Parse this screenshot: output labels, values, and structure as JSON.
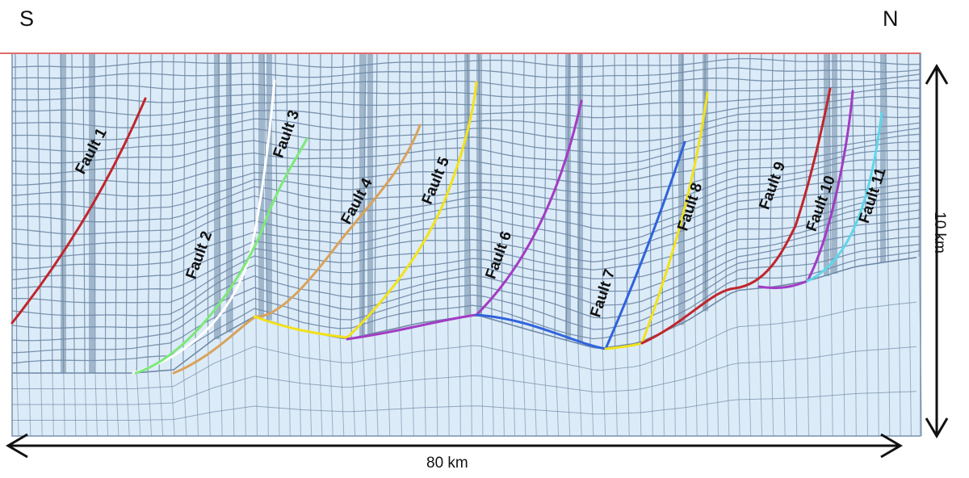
{
  "labels": {
    "left_direction": "S",
    "right_direction": "N",
    "horizontal_scale": "80 km",
    "vertical_scale": "10 km"
  },
  "faults": [
    {
      "label": "Fault 1",
      "color": "#c0262c"
    },
    {
      "label": "Fault 2",
      "color": "#ffffff"
    },
    {
      "label": "Fault 3",
      "color": "#7ee87a"
    },
    {
      "label": "Fault 4",
      "color": "#d9a25a"
    },
    {
      "label": "Fault 5",
      "color": "#f2e21a"
    },
    {
      "label": "Fault 6",
      "color": "#a23cc4"
    },
    {
      "label": "Fault 7",
      "color": "#2f63dd"
    },
    {
      "label": "Fault 8",
      "color": "#f2e21a"
    },
    {
      "label": "Fault 9",
      "color": "#c0262c"
    },
    {
      "label": "Fault 10",
      "color": "#a23cc4"
    },
    {
      "label": "Fault 11",
      "color": "#5fd6ea"
    }
  ],
  "colors": {
    "background_fill": "#dcebf8",
    "grid_line": "#6f8aa6",
    "surface_line": "#e06a6a",
    "annotation": "#111111"
  }
}
